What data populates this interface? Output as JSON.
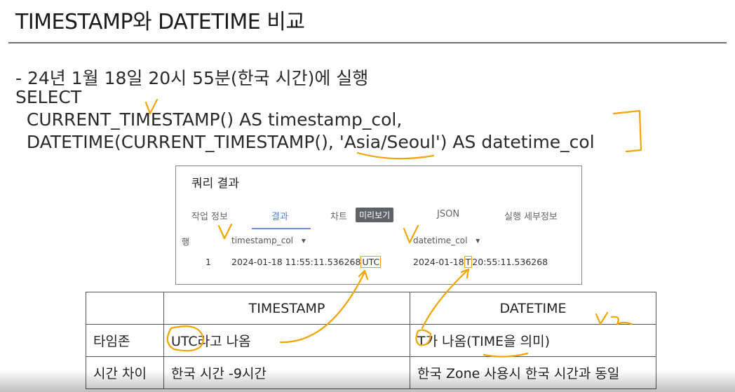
{
  "slide": {
    "title": "TIMESTAMP와 DATETIME 비교",
    "note": "- 24년 1월 18일 20시 55분(한국 시간)에 실행",
    "code": [
      "SELECT",
      "  CURRENT_TIMESTAMP() AS timestamp_col,",
      "  DATETIME(CURRENT_TIMESTAMP(), 'Asia/Seoul') AS datetime_col"
    ]
  },
  "query_panel": {
    "title": "쿼리 결과",
    "tabs": [
      "작업 정보",
      "결과",
      "차트",
      "JSON",
      "실행 세부정보"
    ],
    "active_tab": "결과",
    "preview_badge": "미리보기",
    "row_header": "행",
    "columns": [
      "timestamp_col",
      "datetime_col"
    ],
    "row": {
      "num": "1",
      "timestamp_main": "2024-01-18 11:55:11.536268",
      "timestamp_tz": "UTC",
      "datetime_pre": "2024-01-18",
      "datetime_t": "T",
      "datetime_post": "20:55:11.536268"
    }
  },
  "comparison": {
    "headers": [
      "",
      "TIMESTAMP",
      "DATETIME"
    ],
    "rows": [
      [
        "타임존",
        "UTC라고 나옴",
        "T가 나옴(TIME을 의미)"
      ],
      [
        "시간 차이",
        "한국 시간 -9시간",
        "한국 Zone 사용시 한국 시간과 동일"
      ]
    ]
  },
  "colors": {
    "annotation": "#f0a500",
    "active_tab": "#4f7fd6"
  }
}
